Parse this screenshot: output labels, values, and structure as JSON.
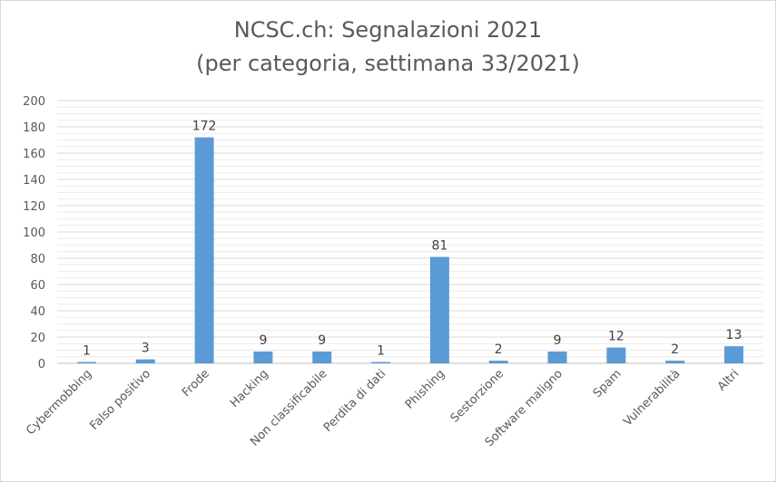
{
  "chart_data": {
    "type": "bar",
    "title": "NCSC.ch: Segnalazioni 2021",
    "subtitle": "(per categoria, settimana 33/2021)",
    "xlabel": "",
    "ylabel": "",
    "categories": [
      "Cybermobbing",
      "Falso positivo",
      "Frode",
      "Hacking",
      "Non classificabile",
      "Perdita di dati",
      "Phishing",
      "Sestorzione",
      "Software maligno",
      "Spam",
      "Vulnerabilità",
      "Altri"
    ],
    "values": [
      1,
      3,
      172,
      9,
      9,
      1,
      81,
      2,
      9,
      12,
      2,
      13
    ],
    "ylim": [
      0,
      200
    ],
    "yticks": [
      0,
      20,
      40,
      60,
      80,
      100,
      120,
      140,
      160,
      180,
      200
    ],
    "grid": true,
    "legend": "none",
    "bar_color": "#5b9bd5",
    "grid_color": "#d9d9d9"
  }
}
